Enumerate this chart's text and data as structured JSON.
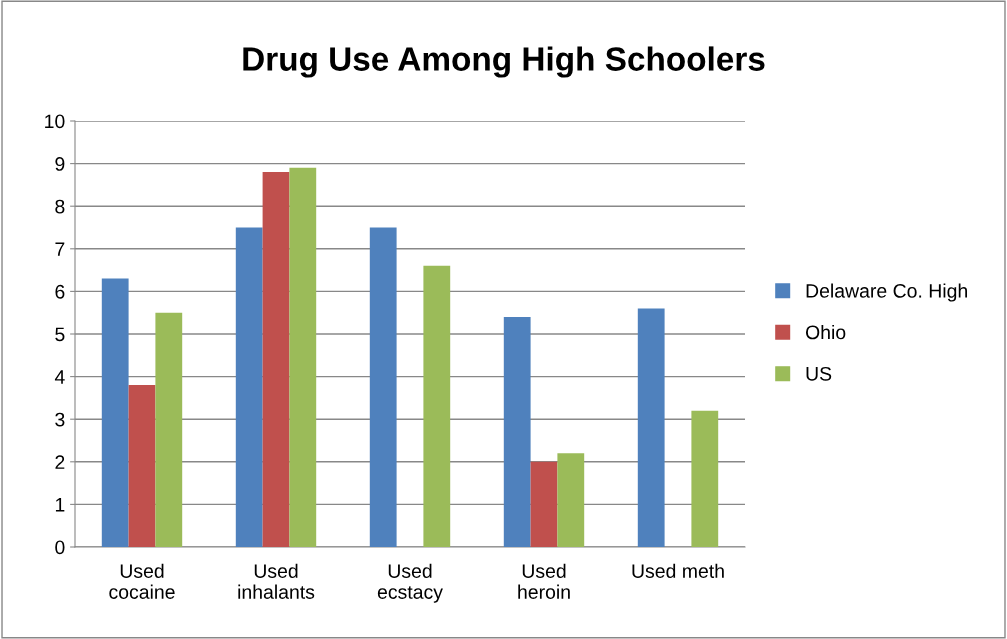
{
  "chart_data": {
    "type": "bar",
    "title": "Drug Use Among High Schoolers",
    "categories": [
      "Used\ncocaine",
      "Used\ninhalants",
      "Used\necstacy",
      "Used\nheroin",
      "Used meth"
    ],
    "series": [
      {
        "name": "Delaware Co. High",
        "color": "#4f81bd",
        "values": [
          6.3,
          7.5,
          7.5,
          5.4,
          5.6
        ]
      },
      {
        "name": "Ohio",
        "color": "#c0504d",
        "values": [
          3.8,
          8.8,
          null,
          2.0,
          null
        ]
      },
      {
        "name": "US",
        "color": "#9bbb59",
        "values": [
          5.5,
          8.9,
          6.6,
          2.2,
          3.2
        ]
      }
    ],
    "ylim": [
      0,
      10
    ],
    "yticks": [
      0,
      1,
      2,
      3,
      4,
      5,
      6,
      7,
      8,
      9,
      10
    ],
    "grid": "y",
    "legend": "right"
  }
}
